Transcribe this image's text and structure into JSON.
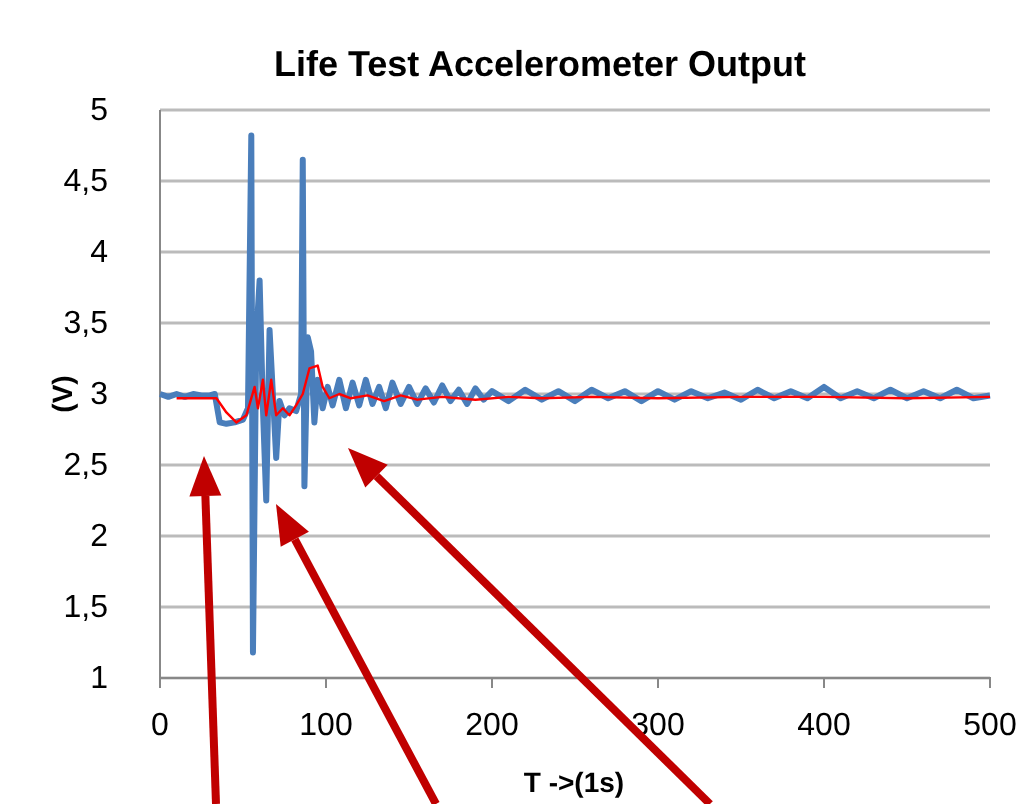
{
  "chart_data": {
    "type": "line",
    "title": "Life Test Accelerometer Output",
    "xlabel": "T ->(1s)",
    "ylabel": "(V)",
    "xlim": [
      0,
      500
    ],
    "xticks": [
      0,
      100,
      200,
      300,
      400,
      500
    ],
    "ylim": [
      1,
      5
    ],
    "yticks": [
      1,
      {
        "value": 1.5,
        "label": "1,5"
      },
      2,
      {
        "value": 2.5,
        "label": "2,5"
      },
      3,
      {
        "value": 3.5,
        "label": "3,5"
      },
      4,
      {
        "value": 4.5,
        "label": "4,5"
      },
      5
    ],
    "grid": "y",
    "series": [
      {
        "color": "#4a7ebb",
        "x": [
          0,
          5,
          10,
          15,
          20,
          25,
          30,
          33,
          36,
          40,
          45,
          50,
          53,
          55,
          56,
          58,
          60,
          62,
          64,
          66,
          68,
          70,
          72,
          75,
          78,
          82,
          85,
          86,
          87,
          89,
          91,
          93,
          95,
          98,
          101,
          104,
          108,
          112,
          116,
          120,
          124,
          128,
          132,
          136,
          140,
          145,
          150,
          155,
          160,
          165,
          170,
          175,
          180,
          185,
          190,
          195,
          200,
          210,
          220,
          230,
          240,
          250,
          260,
          270,
          280,
          290,
          300,
          310,
          320,
          330,
          340,
          350,
          360,
          370,
          380,
          390,
          400,
          410,
          420,
          430,
          440,
          450,
          460,
          470,
          480,
          490,
          500
        ],
        "values": [
          3.0,
          2.98,
          3.0,
          2.98,
          3.0,
          2.99,
          2.99,
          3.0,
          2.8,
          2.79,
          2.8,
          2.82,
          2.9,
          4.82,
          1.18,
          3.4,
          3.8,
          2.9,
          2.25,
          3.45,
          3.0,
          2.55,
          2.95,
          2.85,
          2.9,
          2.88,
          3.0,
          4.65,
          2.35,
          3.4,
          3.3,
          2.8,
          3.1,
          2.9,
          3.05,
          2.92,
          3.1,
          2.9,
          3.08,
          2.92,
          3.1,
          2.93,
          3.05,
          2.9,
          3.08,
          2.93,
          3.05,
          2.93,
          3.04,
          2.94,
          3.06,
          2.95,
          3.03,
          2.93,
          3.04,
          2.96,
          3.02,
          2.95,
          3.03,
          2.96,
          3.02,
          2.95,
          3.03,
          2.97,
          3.02,
          2.95,
          3.02,
          2.96,
          3.02,
          2.97,
          3.01,
          2.96,
          3.03,
          2.97,
          3.02,
          2.97,
          3.05,
          2.97,
          3.02,
          2.97,
          3.03,
          2.97,
          3.02,
          2.97,
          3.03,
          2.97,
          2.99
        ]
      },
      {
        "color": "#ff0000",
        "x": [
          10,
          20,
          30,
          34,
          40,
          46,
          52,
          57,
          59,
          62,
          64,
          67,
          70,
          74,
          78,
          82,
          86,
          90,
          95,
          98,
          102,
          108,
          115,
          125,
          135,
          145,
          155,
          170,
          190,
          210,
          230,
          260,
          300,
          350,
          400,
          450,
          500
        ],
        "values": [
          2.97,
          2.97,
          2.97,
          2.97,
          2.87,
          2.8,
          2.85,
          3.05,
          2.9,
          3.1,
          2.85,
          3.1,
          2.85,
          2.9,
          2.85,
          2.92,
          3.0,
          3.18,
          3.2,
          3.05,
          2.97,
          3.0,
          2.97,
          2.99,
          2.95,
          2.99,
          2.96,
          2.98,
          2.96,
          2.98,
          2.97,
          2.98,
          2.97,
          2.98,
          2.98,
          2.97,
          2.98
        ]
      }
    ]
  }
}
